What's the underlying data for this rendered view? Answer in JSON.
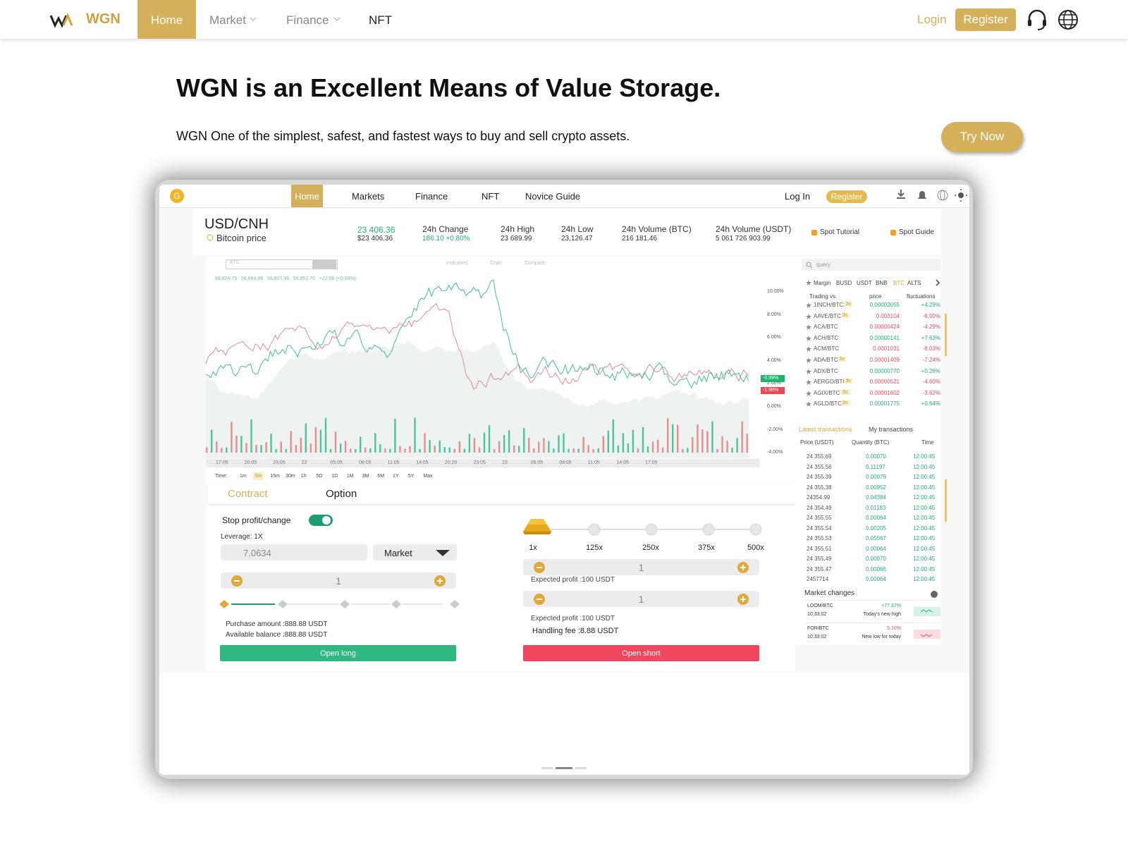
{
  "nav": {
    "brand": "WGN",
    "items": [
      "Home",
      "Market",
      "Finance",
      "NFT"
    ],
    "login": "Login",
    "register": "Register"
  },
  "hero": {
    "title": "WGN is an Excellent Means of Value Storage.",
    "subtitle": "WGN One of the simplest, safest, and fastest ways to buy and sell crypto assets.",
    "cta": "Try Now"
  },
  "mockup": {
    "nav": {
      "items": [
        "Home",
        "Markets",
        "Finance",
        "NFT",
        "Novice Guide"
      ],
      "login": "Log In",
      "register": "Register"
    },
    "ticker": {
      "pair": "USD/CNH",
      "subtitle": "Bitcoin price",
      "price": "23 406.36",
      "price_alt": "$23 406.36",
      "stats": [
        {
          "label": "24h Change",
          "value": "186.10 +0.80%"
        },
        {
          "label": "24h High",
          "value": "23 689.99"
        },
        {
          "label": "24h Low",
          "value": "23,126.47"
        },
        {
          "label": "24h Volume (BTC)",
          "value": "216 181.46"
        },
        {
          "label": "24h Volume (USDT)",
          "value": "5 061 726 903.99"
        }
      ],
      "links": [
        "Spot Tutorial",
        "Spot Guide"
      ]
    },
    "chart": {
      "symbol": "BTC",
      "toolbar": [
        "Indicators",
        "Chart",
        "Compare"
      ],
      "legend": "56,824.73   56,864.96   56,807.36   56,852.70   +22.06 (+0.04%)",
      "y_labels": [
        "10.00%",
        "8.00%",
        "6.00%",
        "4.00%",
        "2.00%",
        "0.00%",
        "-2.00%",
        "-4.00%"
      ],
      "markers": [
        "-0.99%",
        "-1.98%"
      ],
      "x_labels": [
        "17:05",
        "20:05",
        "23:05",
        "22",
        "05:05",
        "08:05",
        "11:05",
        "14:05",
        "20:20",
        "23:05",
        "23",
        "05:05",
        "08:05",
        "11:05",
        "14:05",
        "17:05"
      ],
      "timeframes": [
        "Time:",
        "1m",
        "5m",
        "15m",
        "30m",
        "1h",
        "5D",
        "1D",
        "1M",
        "3M",
        "6M",
        "1Y",
        "5Y",
        "Max"
      ]
    },
    "order": {
      "tabs": [
        "Contract",
        "Option"
      ],
      "stop": "Stop profit/change",
      "leverage": "Leverage: 1X",
      "price": "7.0634",
      "order_type": "Market",
      "qty": "1",
      "purchase": "Purchase amount :888.88 USDT",
      "balance": "Available balance :888.88 USDT",
      "open_long": "Open long",
      "levels": [
        "1x",
        "125x",
        "250x",
        "375x",
        "500x"
      ],
      "qty2": "1",
      "profit1": "Expected profit :100 USDT",
      "qty3": "1",
      "profit2": "Expected profit :100 USDT",
      "fee": "Handling fee :8.88 USDT",
      "open_short": "Open short"
    },
    "market": {
      "query": "query",
      "filters": [
        "Margin",
        "BUSD",
        "USDT",
        "BNB",
        "BTC",
        "ALTS"
      ],
      "columns": [
        "Trading vs.",
        "price",
        "fluctuations"
      ],
      "rows": [
        {
          "pair": "1INCH/BTC",
          "badge": "3x",
          "price": "0.00002055",
          "change": "+4.29%"
        },
        {
          "pair": "AAVE/BTC",
          "badge": "3x",
          "price": "0.003104",
          "change": "-6.00%"
        },
        {
          "pair": "ACA/BTC",
          "price": "0.00000424",
          "change": "-4.29%"
        },
        {
          "pair": "ACH/BTC",
          "price": "0.00000141",
          "change": "+7.63%"
        },
        {
          "pair": "ACM/BTC",
          "price": "0.0001031",
          "change": "-8.03%"
        },
        {
          "pair": "ADA/BTC",
          "badge": "3x",
          "price": "0.00001409",
          "change": "-7.24%"
        },
        {
          "pair": "ADX/BTC",
          "price": "0.00000770",
          "change": "+0.26%"
        },
        {
          "pair": "AERGO/BTC",
          "badge": "3x",
          "price": "0.00000521",
          "change": "-4.60%"
        },
        {
          "pair": "AGIX/BTC",
          "badge": "3x",
          "price": "0.00001602",
          "change": "-3.62%"
        },
        {
          "pair": "AGLD/BTC",
          "badge": "3x",
          "price": "0.00001775",
          "change": "+0.64%"
        }
      ]
    },
    "transactions": {
      "tabs": [
        "Latest transactions",
        "My transactions"
      ],
      "columns": [
        "Price (USDT)",
        "Quantity (BTC)",
        "Time"
      ],
      "rows": [
        [
          "24 355.69",
          "0.00070",
          "12:00:45"
        ],
        [
          "24 355.56",
          "0.11197",
          "12:00:45"
        ],
        [
          "24 355.39",
          "0.00079",
          "12:00:45"
        ],
        [
          "24 355.38",
          "0.00952",
          "12:00:45"
        ],
        [
          "24354.99",
          "0.04384",
          "12:00:45"
        ],
        [
          "24 354.49",
          "0.01183",
          "12:00:45"
        ],
        [
          "24 355.55",
          "0.00064",
          "12:00:45"
        ],
        [
          "24 355.54",
          "0.00205",
          "12:00:45"
        ],
        [
          "24 355.53",
          "0.05567",
          "12:00:45"
        ],
        [
          "24 355.51",
          "0.00064",
          "12:00:45"
        ],
        [
          "24 355.49",
          "0.00070",
          "12:00:45"
        ],
        [
          "24 355.47",
          "0.00066",
          "12:00:45"
        ],
        [
          "2457714",
          "0.00064",
          "12:00:45"
        ]
      ]
    },
    "changes": {
      "title": "Market changes",
      "items": [
        {
          "pair": "LOOM/BTC",
          "time": "10:33:02",
          "change": "+77.37%",
          "note": "Today's new high"
        },
        {
          "pair": "FOR/BTC",
          "time": "10:33:02",
          "change": "5.10%",
          "note": "New low for today"
        }
      ]
    }
  }
}
